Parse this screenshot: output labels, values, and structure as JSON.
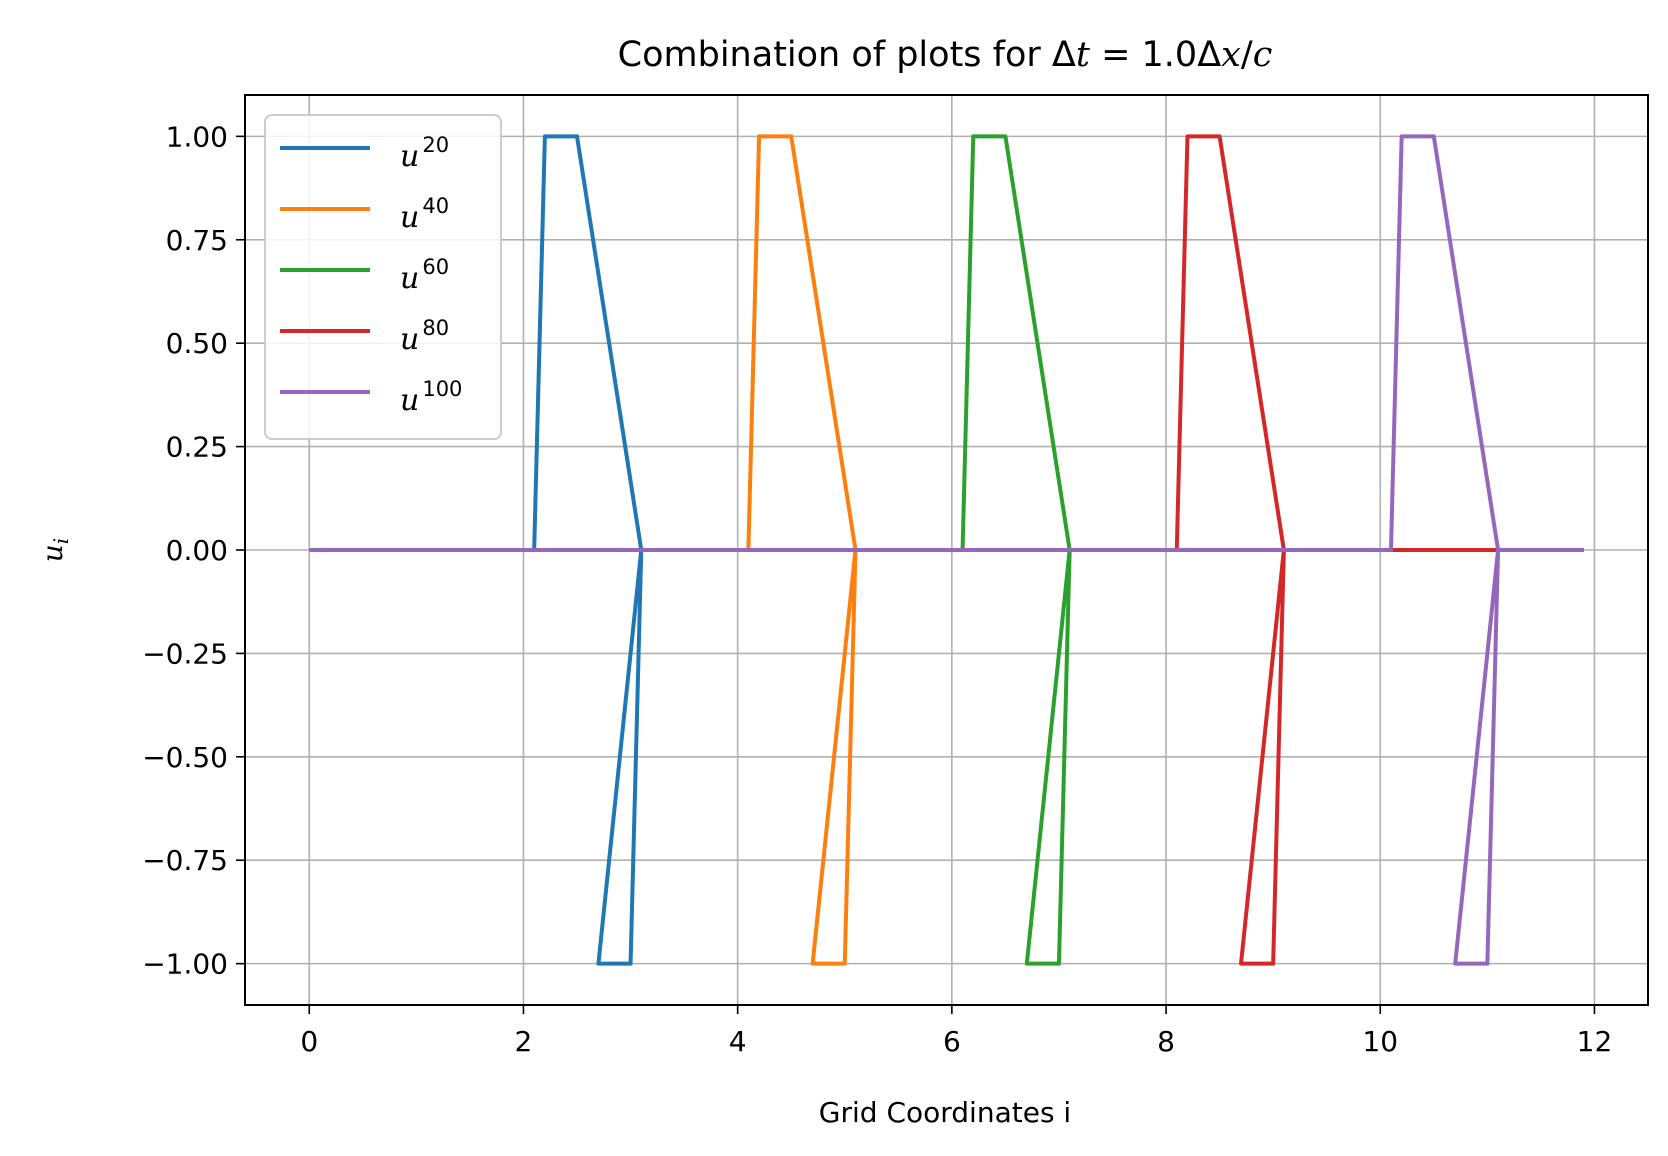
{
  "chart_data": {
    "type": "line",
    "title": "Combination of plots for Δt = 1.0Δx/c",
    "title_parts": {
      "prefix": "Combination of plots for ",
      "delta": "Δ",
      "t": "t",
      "eq": " = 1.0",
      "delta2": "Δ",
      "x": "x",
      "slash": "/",
      "c": "c"
    },
    "xlabel": "Grid Coordinates i",
    "ylabel": "u",
    "ylabel_sub": "i",
    "xlim": [
      -0.6,
      12.5
    ],
    "ylim": [
      -1.1,
      1.1
    ],
    "xticks": [
      0,
      2,
      4,
      6,
      8,
      10,
      12
    ],
    "yticks": [
      1.0,
      0.75,
      0.5,
      0.25,
      0.0,
      -0.25,
      -0.5,
      -0.75,
      -1.0
    ],
    "ytick_labels": [
      "1.00",
      "0.75",
      "0.50",
      "0.25",
      "0.00",
      "−0.25",
      "−0.50",
      "−0.75",
      "−1.00"
    ],
    "grid": true,
    "legend_position": "upper-left",
    "series": [
      {
        "name": "u",
        "sup": "20",
        "color": "#1f77b4",
        "x": [
          0,
          2.1,
          2.2,
          2.5,
          3.1,
          2.7,
          3.0,
          3.1,
          11.9
        ],
        "y": [
          0,
          0,
          1,
          1,
          0,
          -1,
          -1,
          0,
          0
        ]
      },
      {
        "name": "u",
        "sup": "40",
        "color": "#ff7f0e",
        "x": [
          0,
          4.1,
          4.2,
          4.5,
          5.1,
          4.7,
          5.0,
          5.1,
          11.9
        ],
        "y": [
          0,
          0,
          1,
          1,
          0,
          -1,
          -1,
          0,
          0
        ]
      },
      {
        "name": "u",
        "sup": "60",
        "color": "#2ca02c",
        "x": [
          0,
          6.1,
          6.2,
          6.5,
          7.1,
          6.7,
          7.0,
          7.1,
          11.9
        ],
        "y": [
          0,
          0,
          1,
          1,
          0,
          -1,
          -1,
          0,
          0
        ]
      },
      {
        "name": "u",
        "sup": "80",
        "color": "#d62728",
        "x": [
          0,
          8.1,
          8.2,
          8.5,
          9.1,
          8.7,
          9.0,
          9.1,
          11.9
        ],
        "y": [
          0,
          0,
          1,
          1,
          0,
          -1,
          -1,
          0,
          0
        ]
      },
      {
        "name": "u",
        "sup": "100",
        "color": "#9467bd",
        "x": [
          0,
          10.1,
          10.2,
          10.5,
          11.1,
          10.7,
          11.0,
          11.1,
          11.9
        ],
        "y": [
          0,
          0,
          1,
          1,
          0,
          -1,
          -1,
          0,
          0
        ]
      }
    ]
  }
}
